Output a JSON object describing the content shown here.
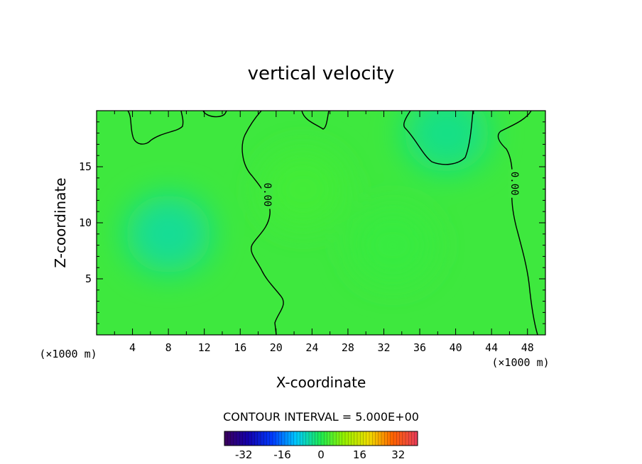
{
  "chart_data": {
    "type": "heatmap",
    "title": "vertical velocity",
    "xlabel": "X-coordinate",
    "ylabel": "Z-coordinate",
    "x_unit_left": "(×1000 m)",
    "x_unit_right": "(×1000 m)",
    "xlim": [
      0,
      50
    ],
    "ylim": [
      0,
      20
    ],
    "x_ticks": [
      4,
      8,
      12,
      16,
      20,
      24,
      28,
      32,
      36,
      40,
      44,
      48
    ],
    "y_ticks": [
      5,
      10,
      15
    ],
    "grid": false,
    "field_features": [
      {
        "x": 8,
        "z": 9,
        "value": -5
      },
      {
        "x": 39,
        "z": 18,
        "value": -4
      },
      {
        "x": 23,
        "z": 13,
        "value": 3
      },
      {
        "x": 33,
        "z": 8,
        "value": 2
      }
    ],
    "contour_labels": [
      {
        "x": 19,
        "z": 12.5,
        "text": "0.00"
      },
      {
        "x": 46.5,
        "z": 13.5,
        "text": "0.00"
      }
    ],
    "contour_interval_text": "CONTOUR INTERVAL = 5.000E+00",
    "colorbar": {
      "min": -40,
      "max": 40,
      "ticks": [
        "-32",
        "-16",
        "0",
        "16",
        "32"
      ],
      "tick_values": [
        -32,
        -16,
        0,
        16,
        32
      ]
    }
  }
}
